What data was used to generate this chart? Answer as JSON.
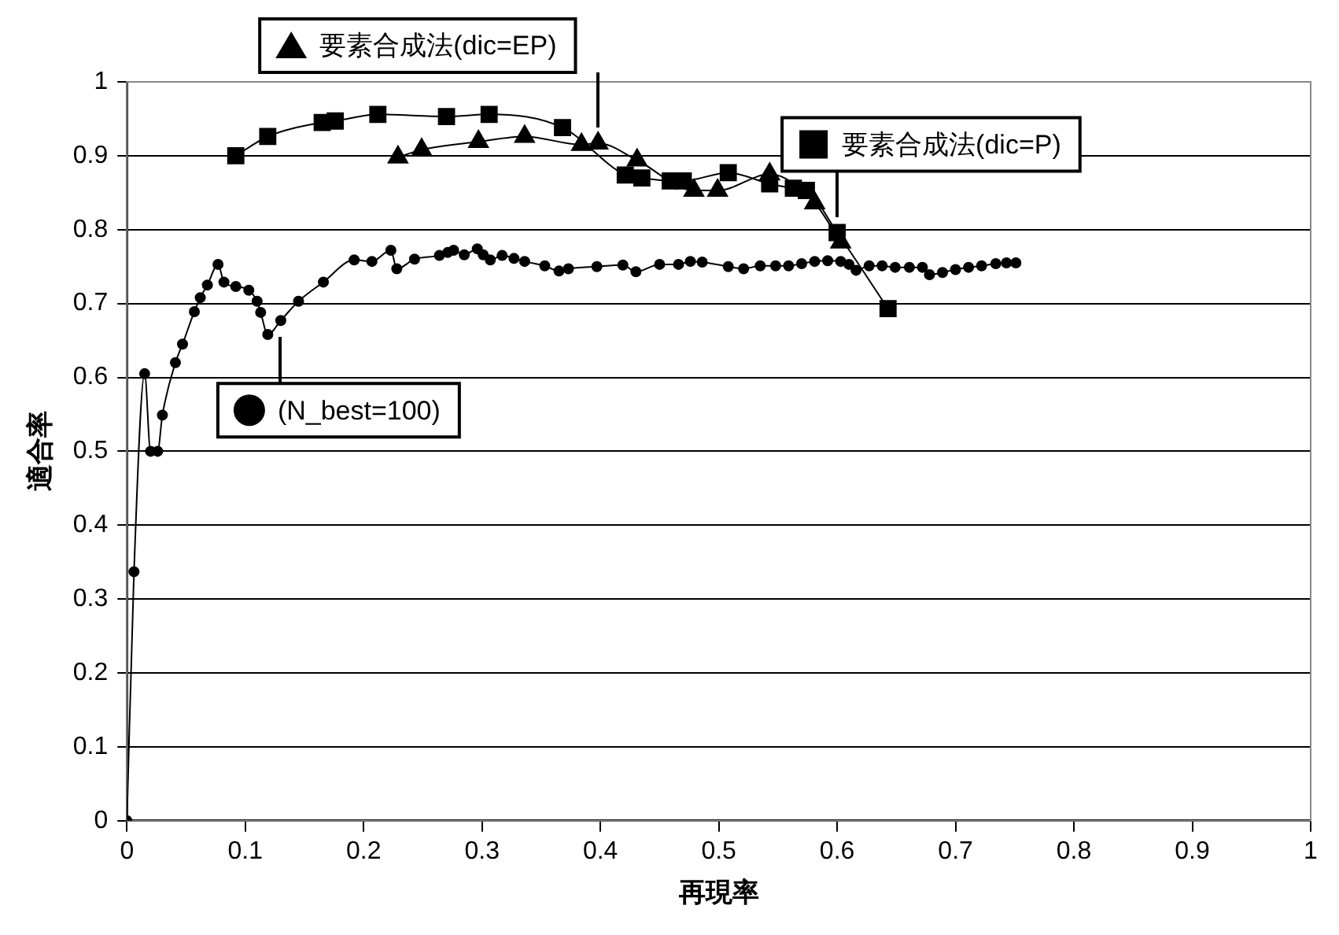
{
  "chart_data": {
    "type": "line",
    "xlabel": "再現率",
    "ylabel": "適合率",
    "xlim": [
      0,
      1
    ],
    "xticks": [
      0,
      0.1,
      0.2,
      0.3,
      0.4,
      0.5,
      0.6,
      0.7,
      0.8,
      0.9,
      1
    ],
    "ylim": [
      0,
      1
    ],
    "yticks": [
      0,
      0.1,
      0.2,
      0.3,
      0.4,
      0.5,
      0.6,
      0.7,
      0.8,
      0.9,
      1
    ],
    "grid": "y",
    "legend": "top",
    "series": [
      {
        "name": "要素合成法(dic=EP)",
        "color": "#000000",
        "marker": "triangle",
        "x": [
          0.229,
          0.249,
          0.297,
          0.336,
          0.384,
          0.398,
          0.431,
          0.479,
          0.499,
          0.543,
          0.581,
          0.603
        ],
        "values": [
          0.898,
          0.908,
          0.919,
          0.926,
          0.915,
          0.917,
          0.894,
          0.853,
          0.853,
          0.875,
          0.836,
          0.783
        ]
      },
      {
        "name": "要素合成法(dic=P)",
        "color": "#000000",
        "marker": "square",
        "x": [
          0.092,
          0.119,
          0.165,
          0.176,
          0.212,
          0.27,
          0.306,
          0.368,
          0.421,
          0.435,
          0.459,
          0.47,
          0.508,
          0.543,
          0.563,
          0.574,
          0.6,
          0.643
        ],
        "values": [
          0.9,
          0.926,
          0.945,
          0.947,
          0.956,
          0.953,
          0.956,
          0.938,
          0.874,
          0.87,
          0.866,
          0.866,
          0.877,
          0.862,
          0.856,
          0.853,
          0.796,
          0.693
        ]
      },
      {
        "name": "(N_best=100)",
        "color": "#000000",
        "marker": "circle",
        "x": [
          0,
          0.006,
          0.015,
          0.02,
          0.026,
          0.03,
          0.041,
          0.047,
          0.057,
          0.062,
          0.068,
          0.077,
          0.082,
          0.092,
          0.103,
          0.11,
          0.113,
          0.119,
          0.13,
          0.145,
          0.166,
          0.192,
          0.207,
          0.223,
          0.228,
          0.243,
          0.264,
          0.271,
          0.276,
          0.285,
          0.296,
          0.301,
          0.307,
          0.317,
          0.327,
          0.336,
          0.353,
          0.365,
          0.373,
          0.397,
          0.419,
          0.43,
          0.45,
          0.466,
          0.476,
          0.486,
          0.508,
          0.521,
          0.535,
          0.548,
          0.559,
          0.57,
          0.581,
          0.592,
          0.603,
          0.61,
          0.616,
          0.627,
          0.638,
          0.649,
          0.661,
          0.672,
          0.678,
          0.689,
          0.7,
          0.711,
          0.722,
          0.734,
          0.743,
          0.751
        ],
        "values": [
          0,
          0.337,
          0.605,
          0.5,
          0.5,
          0.549,
          0.62,
          0.645,
          0.689,
          0.708,
          0.725,
          0.753,
          0.729,
          0.723,
          0.718,
          0.703,
          0.688,
          0.658,
          0.677,
          0.703,
          0.729,
          0.759,
          0.757,
          0.772,
          0.747,
          0.76,
          0.765,
          0.769,
          0.772,
          0.766,
          0.774,
          0.766,
          0.759,
          0.765,
          0.761,
          0.757,
          0.751,
          0.744,
          0.747,
          0.75,
          0.752,
          0.743,
          0.753,
          0.753,
          0.757,
          0.756,
          0.75,
          0.747,
          0.751,
          0.751,
          0.751,
          0.754,
          0.757,
          0.758,
          0.757,
          0.753,
          0.745,
          0.751,
          0.751,
          0.749,
          0.749,
          0.749,
          0.739,
          0.742,
          0.746,
          0.749,
          0.751,
          0.754,
          0.755,
          0.755
        ]
      }
    ]
  }
}
